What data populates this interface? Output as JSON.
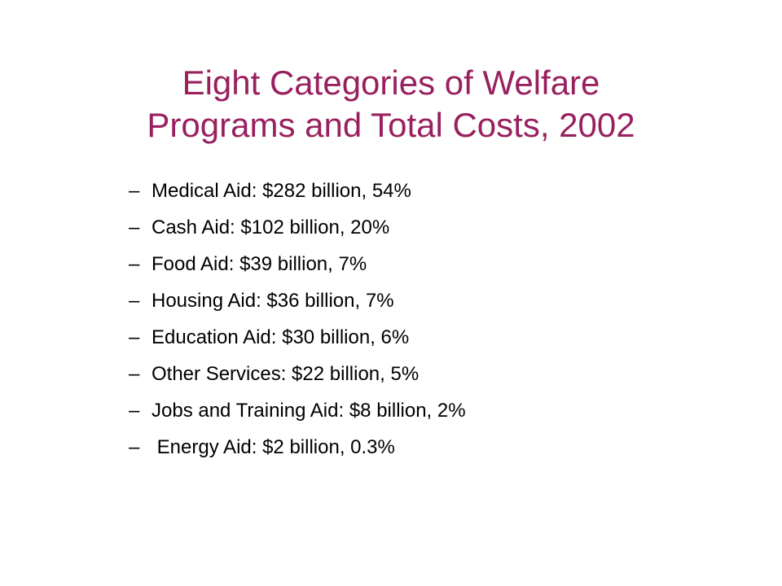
{
  "slide": {
    "title_line1": "Eight Categories of Welfare",
    "title_line2": "Programs and Total Costs, 2002",
    "title_color": "#99205f",
    "bullet_marker": "–",
    "bullets": [
      "Medical Aid: $282 billion, 54%",
      "Cash Aid: $102 billion, 20%",
      "Food Aid: $39 billion, 7%",
      "Housing Aid: $36 billion, 7%",
      "Education Aid: $30 billion, 6%",
      "Other Services: $22 billion, 5%",
      "Jobs and Training Aid: $8 billion, 2%",
      " Energy Aid: $2 billion, 0.3%"
    ]
  }
}
